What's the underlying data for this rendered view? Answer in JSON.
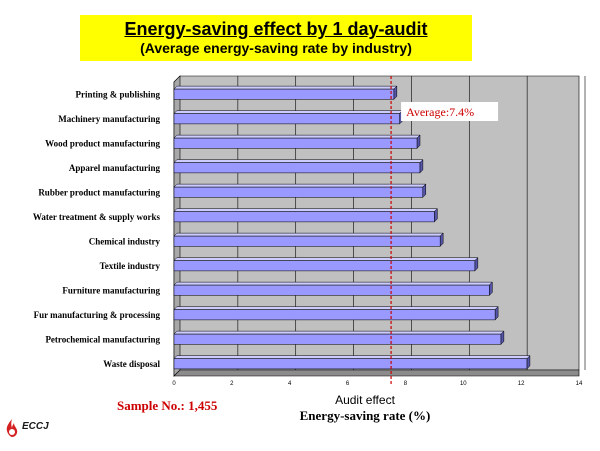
{
  "header": {
    "title": "Energy-saving effect by 1 day-audit",
    "subtitle": "(Average energy-saving rate by industry)"
  },
  "footer": {
    "sample": "Sample No.: 1,455",
    "xlabel_line1": "Audit effect",
    "xlabel_line2": "Energy-saving rate (%)",
    "logo_text": "ECCJ"
  },
  "colors": {
    "bar": "#9999ff",
    "plot_bg": "#c0c0c0",
    "average_line": "#cc0000",
    "title_bg": "#ffff00"
  },
  "chart_data": {
    "type": "bar",
    "orientation": "horizontal",
    "title": "Energy-saving effect by 1 day-audit",
    "subtitle": "(Average energy-saving rate by industry)",
    "xlabel": "Energy-saving rate (%)",
    "categories": [
      "Printing & publishing",
      "Machinery manufacturing",
      "Wood product manufacturing",
      "Apparel manufacturing",
      "Rubber product manufacturing",
      "Water treatment & supply works",
      "Chemical industry",
      "Textile industry",
      "Furniture manufacturing",
      "Fur manufacturing & processing",
      "Petrochemical manufacturing",
      "Waste disposal"
    ],
    "values": [
      7.6,
      7.8,
      8.4,
      8.5,
      8.6,
      9.0,
      9.2,
      10.4,
      10.9,
      11.1,
      11.3,
      12.2
    ],
    "xlim": [
      0,
      14
    ],
    "xticks": [
      "0",
      "2",
      "4",
      "6",
      "8",
      "10",
      "12",
      "14"
    ],
    "grid": true,
    "average": {
      "value": 7.4,
      "label": "Average:7.4%"
    }
  }
}
